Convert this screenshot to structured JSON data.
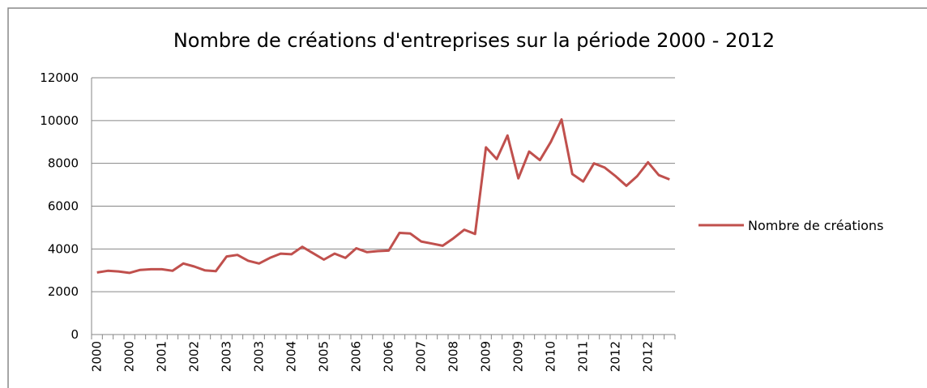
{
  "chart_data": {
    "type": "line",
    "title": "Nombre de créations d'entreprises sur la période 2000 - 2012",
    "categories": [
      "2000",
      null,
      null,
      "2000",
      null,
      null,
      "2001",
      null,
      null,
      "2002",
      null,
      null,
      "2003",
      null,
      null,
      "2003",
      null,
      null,
      "2004",
      null,
      null,
      "2005",
      null,
      null,
      "2006",
      null,
      null,
      "2006",
      null,
      null,
      "2007",
      null,
      null,
      "2008",
      null,
      null,
      "2009",
      null,
      null,
      "2009",
      null,
      null,
      "2010",
      null,
      null,
      "2011",
      null,
      null,
      "2012",
      null,
      null,
      "2012",
      null,
      null
    ],
    "series": [
      {
        "name": "Nombre de créations",
        "color": "#c0504d",
        "values": [
          2900,
          2980,
          2950,
          2880,
          3020,
          3050,
          3050,
          2980,
          3320,
          3180,
          3000,
          2960,
          3650,
          3720,
          3450,
          3320,
          3580,
          3780,
          3750,
          4100,
          3800,
          3500,
          3780,
          3580,
          4030,
          3850,
          3900,
          3920,
          4750,
          4720,
          4350,
          4250,
          4150,
          4500,
          4900,
          4700,
          8750,
          8200,
          9300,
          7300,
          8550,
          8150,
          9000,
          10050,
          7500,
          7150,
          8000,
          7800,
          7400,
          6950,
          7400,
          8050,
          7450,
          7250
        ]
      }
    ],
    "ylim": [
      0,
      12000
    ],
    "yticks": [
      0,
      2000,
      4000,
      6000,
      8000,
      10000,
      12000
    ],
    "grid": true,
    "legend": "right"
  }
}
